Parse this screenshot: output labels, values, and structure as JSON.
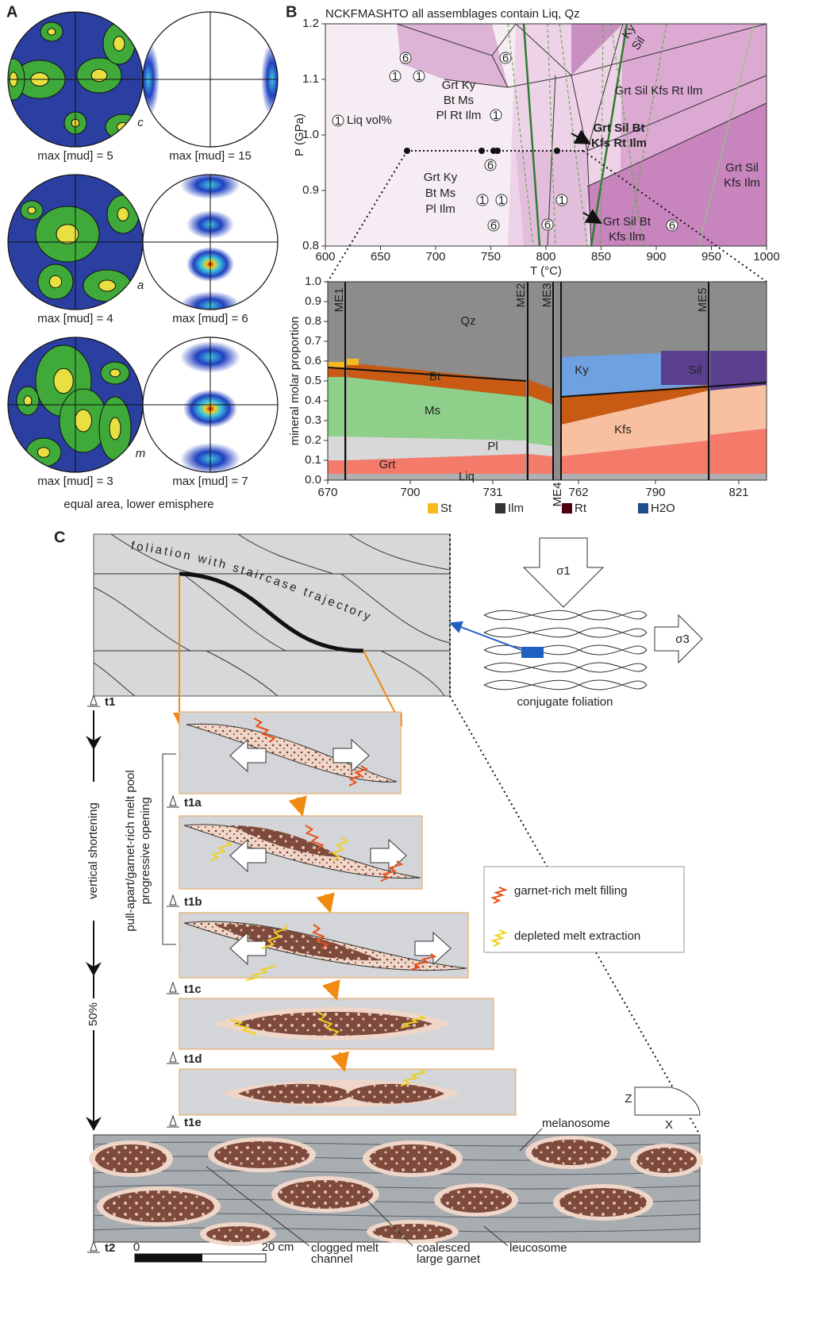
{
  "panel_a": {
    "label": "A",
    "stereonets": [
      {
        "left_max": "max [mud] = 5",
        "right_max": "max [mud] = 15",
        "axis": "c"
      },
      {
        "left_max": "max [mud] = 4",
        "right_max": "max [mud] = 6",
        "axis": "a"
      },
      {
        "left_max": "max [mud] = 3",
        "right_max": "max [mud] = 7",
        "axis": "m"
      }
    ],
    "caption": "equal area, lower emisphere"
  },
  "panel_b": {
    "label": "B",
    "pt_diagram": {
      "title": "NCKFMASHTO all assemblages contain Liq, Qz",
      "y_label": "P (GPa)",
      "x_label": "T (°C)",
      "yticks": [
        "0.8",
        "0.9",
        "1.0",
        "1.1",
        "1.2"
      ],
      "xticks": [
        "600",
        "650",
        "700",
        "750",
        "800",
        "850",
        "900",
        "950",
        "1000"
      ],
      "isopleth_key": {
        "number": "1",
        "label": "Liq vol%"
      },
      "isopleth_labels": [
        "1",
        "6"
      ],
      "fields": [
        [
          "Ky",
          "Sil"
        ],
        [
          "Grt Ky",
          "Bt Ms",
          "Pl Rt Ilm"
        ],
        [
          "Grt Sil Kfs Rt Ilm"
        ],
        [
          "Grt Sil Bt",
          "Kfs Rt Ilm"
        ],
        [
          "Grt Ky",
          "Bt Ms",
          "Pl Ilm"
        ],
        [
          "Grt Sil Bt",
          "Kfs Ilm"
        ],
        [
          "Grt Sil",
          "Kfs Ilm"
        ]
      ]
    },
    "proportions": {
      "y_label": "mineral molar proportion",
      "yticks": [
        "0.0",
        "0.1",
        "0.2",
        "0.3",
        "0.4",
        "0.5",
        "0.6",
        "0.7",
        "0.8",
        "0.9",
        "1.0"
      ],
      "xticks": [
        "670",
        "700",
        "731",
        "762",
        "790",
        "821"
      ],
      "reactions": [
        "ME1",
        "ME2",
        "ME3",
        "ME4",
        "ME5"
      ],
      "phases": [
        "Qz",
        "Bt",
        "Ms",
        "Pl",
        "Grt",
        "Liq",
        "Ky",
        "Sil",
        "Kfs"
      ],
      "legend": [
        "St",
        "Ilm",
        "Rt",
        "H2O"
      ]
    }
  },
  "panel_c": {
    "label": "C",
    "foliation": "foliation with staircase trajectory",
    "sigma1": "σ1",
    "sigma3": "σ3",
    "conjugate": "conjugate foliation",
    "stages": [
      "t1",
      "t1a",
      "t1b",
      "t1c",
      "t1d",
      "t1e",
      "t2"
    ],
    "shortening": "vertical shortening",
    "shortening_amount": "50%",
    "pool": [
      "pull-apart/garnet-rich melt pool",
      "progressive opening"
    ],
    "legend": [
      "garnet-rich melt filling",
      "depleted melt extraction"
    ],
    "axes": [
      "Z",
      "X"
    ],
    "annotations": {
      "melanosome": "melanosome",
      "clogged": [
        "clogged melt",
        "channel"
      ],
      "coalesced": [
        "coalesced",
        "large garnet"
      ],
      "leucosome": "leucosome"
    },
    "scale": [
      "0",
      "20 cm"
    ]
  }
}
